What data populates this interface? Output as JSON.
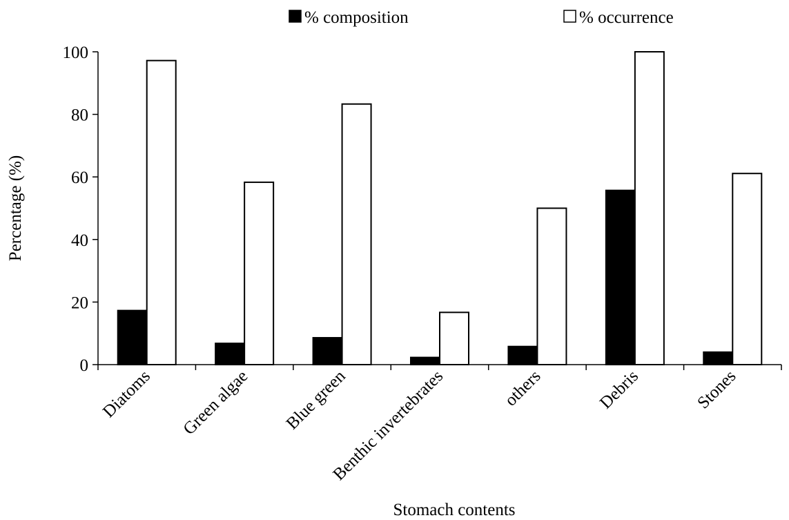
{
  "chart_data": {
    "type": "bar",
    "title": "",
    "xlabel": "Stomach contents",
    "ylabel": "Percentage (%)",
    "ylim": [
      0,
      100
    ],
    "yticks": [
      0,
      20,
      40,
      60,
      80,
      100
    ],
    "categories": [
      "Diatoms",
      "Green algae",
      "Blue green",
      "Benthic invertebrates",
      "others",
      "Debris",
      "Stones"
    ],
    "series": [
      {
        "name": "% composition",
        "color": "#000000",
        "values": [
          17.3,
          6.8,
          8.6,
          2.3,
          5.8,
          55.7,
          4.0
        ]
      },
      {
        "name": "% occurrence",
        "color": "#ffffff",
        "values": [
          97.2,
          58.3,
          83.3,
          16.7,
          50.0,
          100.0,
          61.1
        ]
      }
    ],
    "legend_position": "top",
    "grid": false
  }
}
